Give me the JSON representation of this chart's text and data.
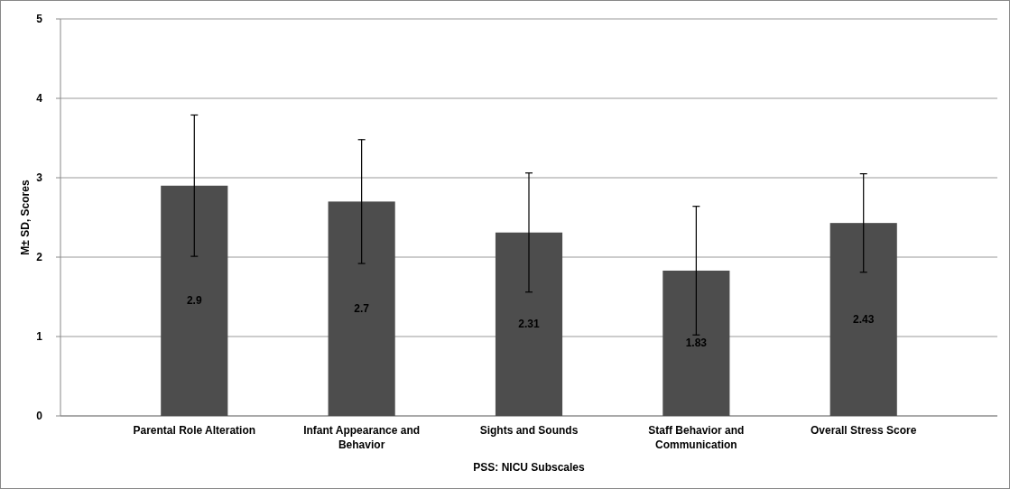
{
  "chart_data": {
    "type": "bar",
    "xlabel": "PSS: NICU Subscales",
    "ylabel": "M± SD, Scores",
    "categories": [
      "Parental Role Alteration",
      "Infant Appearance and Behavior",
      "Sights and Sounds",
      "Staff Behavior and Communication",
      "Overall Stress Score"
    ],
    "values": [
      2.9,
      2.7,
      2.31,
      1.83,
      2.43
    ],
    "errors": [
      0.89,
      0.78,
      0.75,
      0.81,
      0.62
    ],
    "color": "#4d4d4d",
    "ylim": [
      0,
      5
    ],
    "yticks": [
      0,
      1,
      2,
      3,
      4,
      5
    ],
    "grid": "y",
    "data_labels": true
  }
}
